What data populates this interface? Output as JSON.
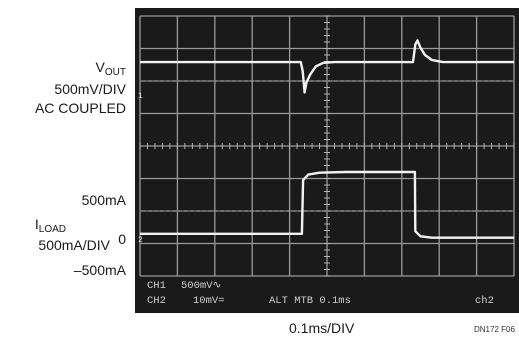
{
  "chart_data": {
    "type": "line",
    "xlabel": "0.1ms/DIV",
    "figure_id": "DN172 F06",
    "xlim": [
      0,
      10
    ],
    "divisions": {
      "x": 10,
      "y": 8
    },
    "grid": true,
    "channels": {
      "vout": {
        "label_main": "V",
        "label_sub": "OUT",
        "scale": "500mV/DIV",
        "coupling": "AC COUPLED",
        "ylim": [
          -8,
          0
        ],
        "level_marker": "1",
        "points": [
          [
            0,
            -1.42
          ],
          [
            4.3,
            -1.42
          ],
          [
            4.35,
            -1.7
          ],
          [
            4.4,
            -2.35
          ],
          [
            4.45,
            -2.05
          ],
          [
            4.55,
            -1.8
          ],
          [
            4.7,
            -1.55
          ],
          [
            4.9,
            -1.44
          ],
          [
            5.2,
            -1.42
          ],
          [
            7.3,
            -1.42
          ],
          [
            7.36,
            -0.88
          ],
          [
            7.42,
            -0.75
          ],
          [
            7.5,
            -0.98
          ],
          [
            7.62,
            -1.2
          ],
          [
            7.8,
            -1.35
          ],
          [
            8.1,
            -1.42
          ],
          [
            10,
            -1.42
          ]
        ]
      },
      "iload": {
        "label_main": "I",
        "label_sub": "LOAD",
        "scale": "500mA/DIV",
        "tick_labels": [
          "500mA",
          "0",
          "–500mA"
        ],
        "level_marker": "2",
        "points": [
          [
            0,
            6.7
          ],
          [
            4.33,
            6.7
          ],
          [
            4.36,
            5.05
          ],
          [
            4.5,
            4.88
          ],
          [
            4.8,
            4.82
          ],
          [
            5.5,
            4.8
          ],
          [
            7.35,
            4.8
          ],
          [
            7.36,
            6.62
          ],
          [
            7.5,
            6.78
          ],
          [
            7.8,
            6.82
          ],
          [
            8.5,
            6.82
          ],
          [
            10,
            6.82
          ]
        ]
      }
    },
    "readout": {
      "line1": [
        "CH1",
        "500mV∿"
      ],
      "line2": [
        "CH2",
        "10mV=",
        "ALT MTB 0.1ms",
        "ch2"
      ]
    }
  }
}
